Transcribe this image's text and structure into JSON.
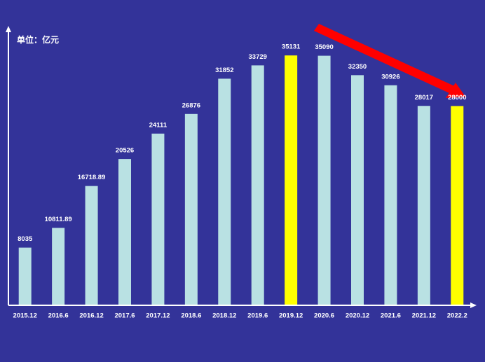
{
  "chart_data": {
    "type": "bar",
    "y_label": "单位：亿元",
    "categories": [
      "2015.12",
      "2016.6",
      "2016.12",
      "2017.6",
      "2017.12",
      "2018.6",
      "2018.12",
      "2019.6",
      "2019.12",
      "2020.6",
      "2020.12",
      "2021.6",
      "2021.12",
      "2022.2"
    ],
    "values": [
      8035,
      10811.89,
      16718.89,
      20526,
      24111,
      26876,
      31852,
      33729,
      35131,
      35090,
      32350,
      30926,
      28017,
      28000
    ],
    "colors": [
      "#b9e1e3",
      "#b9e1e3",
      "#b9e1e3",
      "#b9e1e3",
      "#b9e1e3",
      "#b9e1e3",
      "#b9e1e3",
      "#b9e1e3",
      "#ffff00",
      "#b9e1e3",
      "#b9e1e3",
      "#b9e1e3",
      "#b9e1e3",
      "#ffff00"
    ],
    "ylim": [
      0,
      39000
    ]
  }
}
